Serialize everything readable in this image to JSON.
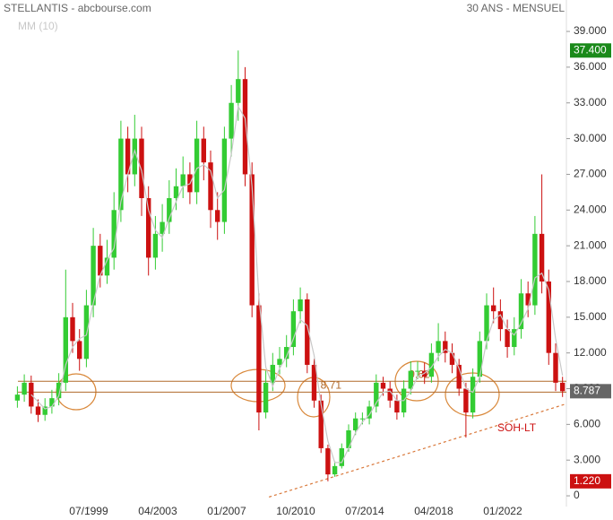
{
  "chart_data": {
    "type": "candlestick",
    "title": "STELLANTIS - abcbourse.com",
    "subtitle": "30 ANS - MENSUEL",
    "x": [
      1995.625,
      1996,
      1996.375,
      1996.75,
      1997.125,
      1997.5,
      1997.875,
      1998.25,
      1998.625,
      1999,
      1999.375,
      1999.75,
      2000.125,
      2000.5,
      2000.875,
      2001.25,
      2001.625,
      2002,
      2002.375,
      2002.75,
      2003.125,
      2003.5,
      2003.875,
      2004.25,
      2004.625,
      2005,
      2005.375,
      2005.75,
      2006.125,
      2006.5,
      2006.875,
      2007.25,
      2007.625,
      2008,
      2008.375,
      2008.75,
      2009.125,
      2009.5,
      2009.875,
      2010.25,
      2010.625,
      2011,
      2011.375,
      2011.75,
      2012.125,
      2012.5,
      2012.875,
      2013.25,
      2013.625,
      2014,
      2014.375,
      2014.75,
      2015.125,
      2015.5,
      2015.875,
      2016.25,
      2016.625,
      2017,
      2017.375,
      2017.75,
      2018.125,
      2018.5,
      2018.875,
      2019.25,
      2019.625,
      2020,
      2020.375,
      2020.75,
      2021.125,
      2021.5,
      2021.875,
      2022.25,
      2022.625,
      2023,
      2023.375,
      2023.75,
      2024.125,
      2024.5,
      2024.875,
      2025.25
    ],
    "open": [
      8,
      8.5,
      9.5,
      7.5,
      6.8,
      7.5,
      8.2,
      9.5,
      15,
      13,
      11.5,
      16,
      21,
      18.5,
      20,
      24,
      30,
      27,
      30,
      25,
      20,
      22,
      23,
      25,
      26,
      27,
      25.5,
      30,
      28,
      24,
      23,
      30,
      33,
      35,
      27,
      16,
      7,
      9.5,
      11,
      11.5,
      12.5,
      15.5,
      16.5,
      11,
      8,
      4,
      1.8,
      2.5,
      4,
      5.5,
      6.5,
      6.5,
      7.5,
      9.5,
      9,
      8,
      7,
      9,
      10.5,
      10.5,
      10,
      12,
      13,
      12,
      11,
      9,
      7,
      10,
      13,
      16,
      15.5,
      14,
      12.5,
      14,
      17,
      16,
      22,
      18,
      12,
      9.5
    ],
    "high": [
      9.2,
      10.2,
      10.1,
      8.1,
      8.2,
      8.9,
      10.3,
      19,
      16.2,
      14,
      17.3,
      22.5,
      22,
      21.5,
      25.5,
      31.5,
      31,
      32,
      31,
      26,
      23.5,
      24.5,
      26.5,
      27.5,
      28.5,
      28,
      31.5,
      31,
      29,
      25.5,
      31,
      34.5,
      37.4,
      36,
      28,
      17,
      10.5,
      12,
      12.5,
      13.5,
      16.5,
      17.5,
      17,
      11.5,
      8.5,
      4.3,
      2.9,
      4.4,
      6,
      7,
      7,
      8,
      10.2,
      10,
      9.6,
      8.5,
      9.7,
      11.3,
      11.3,
      11.2,
      12.8,
      14.5,
      13.8,
      12.8,
      11.5,
      9.5,
      10.7,
      13.8,
      17,
      17.5,
      16.5,
      14.8,
      15,
      18.2,
      18,
      23.5,
      27,
      19,
      12.8,
      10
    ],
    "low": [
      7.4,
      7.9,
      6.9,
      6.2,
      6.3,
      6.9,
      7.6,
      8.8,
      12,
      10.5,
      10.8,
      15,
      17.5,
      17.8,
      19,
      23,
      25.5,
      26,
      23.5,
      18.5,
      19,
      20.5,
      22,
      24,
      25,
      24.5,
      24.5,
      26.5,
      22.5,
      21.5,
      22,
      28.5,
      31.5,
      26,
      15,
      5.5,
      6.5,
      8.8,
      10.2,
      10.8,
      11.8,
      14.5,
      10.3,
      7.4,
      3.6,
      1.22,
      1.6,
      2.3,
      3.7,
      5.1,
      6,
      6,
      7,
      8.4,
      7.4,
      6.4,
      6.6,
      8.5,
      9.8,
      9.4,
      9.5,
      11.3,
      11.2,
      10.3,
      8.4,
      4.9,
      6.5,
      9.5,
      12.3,
      14.5,
      13,
      11.6,
      11.8,
      13.2,
      15,
      15.2,
      17,
      11,
      8.8,
      8.3
    ],
    "close": [
      8.5,
      9.5,
      7.5,
      6.8,
      7.5,
      8.2,
      9.5,
      15,
      13,
      11.5,
      16,
      21,
      18.5,
      20,
      24,
      30,
      27,
      30,
      25,
      20,
      22,
      23,
      25,
      26,
      27,
      25.5,
      30,
      28,
      24,
      23,
      30,
      33,
      35,
      27,
      16,
      7,
      9.5,
      11,
      11.5,
      12.5,
      15.5,
      16.5,
      11,
      8,
      4,
      1.8,
      2.5,
      4,
      5.5,
      6.5,
      6.5,
      7.5,
      9.5,
      9,
      8,
      7,
      9,
      10.5,
      10.5,
      10,
      12,
      13,
      12,
      11,
      9,
      7,
      10,
      13,
      16,
      15.5,
      14,
      12.5,
      14,
      17,
      16,
      22,
      18,
      12,
      9.5,
      8.787
    ],
    "up_color": "#33cc33",
    "down_color": "#cc1111",
    "series": [
      {
        "name": "MM (10)",
        "color": "#c8c8c8",
        "values": [
          null,
          null,
          8.5,
          7.9,
          7.3,
          7.5,
          8.4,
          11,
          12.5,
          13.2,
          13.5,
          16.2,
          18.5,
          19.8,
          20.8,
          24.7,
          27,
          29,
          27.3,
          24,
          22.3,
          21.7,
          23.3,
          24.7,
          26,
          26.2,
          27.5,
          27.8,
          27.3,
          25,
          25.7,
          28.7,
          32.7,
          31.7,
          26,
          16.7,
          10.8,
          9.2,
          10.7,
          11.7,
          13.2,
          14.8,
          14.3,
          11.8,
          7.7,
          4.6,
          2.8,
          2.8,
          4,
          5.3,
          6.2,
          6.8,
          7.8,
          8.7,
          8.8,
          8,
          8,
          8.8,
          10,
          10.3,
          10.8,
          11.7,
          12.3,
          12,
          10.7,
          9,
          8.7,
          10,
          13,
          14.8,
          15.2,
          14,
          13.5,
          14.5,
          15.7,
          18.3,
          18.7,
          17.3,
          13.2,
          10.1
        ]
      }
    ],
    "xlim": [
      1994.68,
      2025.46
    ],
    "ylim": [
      -0.9,
      41.64
    ],
    "xticks": [
      {
        "value": 1999.5,
        "label": "07/1999"
      },
      {
        "value": 2003.25,
        "label": "04/2003"
      },
      {
        "value": 2007.0,
        "label": "01/2007"
      },
      {
        "value": 2010.75,
        "label": "10/2010"
      },
      {
        "value": 2014.5,
        "label": "07/2014"
      },
      {
        "value": 2018.25,
        "label": "04/2018"
      },
      {
        "value": 2022.0,
        "label": "01/2022"
      }
    ],
    "yticks": [
      0,
      {
        "value": 3,
        "label": "3.000"
      },
      {
        "value": 6,
        "label": "6.000"
      },
      {
        "value": 9,
        "label": "9.000"
      },
      {
        "value": 12,
        "label": "12.000"
      },
      {
        "value": 15,
        "label": "15.000"
      },
      {
        "value": 18,
        "label": "18.000"
      },
      {
        "value": 21,
        "label": "21.000"
      },
      {
        "value": 24,
        "label": "24.000"
      },
      {
        "value": 27,
        "label": "27.000"
      },
      {
        "value": 30,
        "label": "30.000"
      },
      {
        "value": 33,
        "label": "33.000"
      },
      {
        "value": 36,
        "label": "36.000"
      },
      {
        "value": 39,
        "label": "39.000"
      }
    ],
    "price_tags": [
      {
        "value": 37.4,
        "label": "37.400",
        "color": "#1a8a1a"
      },
      {
        "value": 8.787,
        "label": "8.787",
        "color": "#666666"
      },
      {
        "value": 1.22,
        "label": "1.220",
        "color": "#cc1111"
      }
    ],
    "levels": [
      {
        "value": 9.62,
        "label": "9.62",
        "x": 2016.9
      },
      {
        "value": 8.71,
        "label": "8.71",
        "x": 2012.1
      }
    ],
    "level_color": "#b06a2a",
    "trendline": {
      "label": "SOH-LT",
      "x": [
        2009.3,
        2025.4
      ],
      "y": [
        -0.1,
        7.7
      ],
      "color": "#d9783a"
    }
  }
}
